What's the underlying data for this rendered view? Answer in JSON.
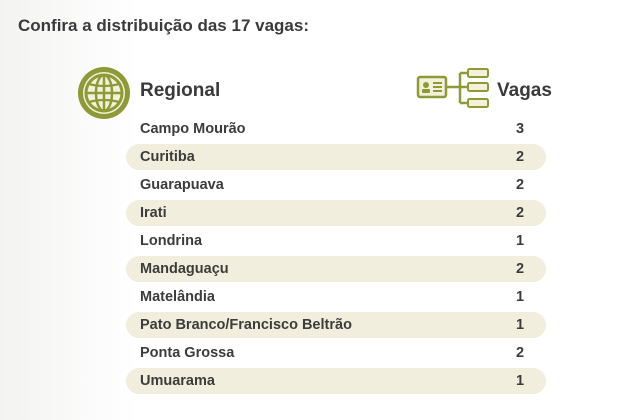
{
  "heading": "Confira a distribuição das 17 vagas:",
  "columns": {
    "regional": "Regional",
    "vagas": "Vagas"
  },
  "rows": [
    {
      "regional": "Campo Mourão",
      "vagas": "3"
    },
    {
      "regional": "Curitiba",
      "vagas": "2"
    },
    {
      "regional": "Guarapuava",
      "vagas": "2"
    },
    {
      "regional": "Irati",
      "vagas": "2"
    },
    {
      "regional": "Londrina",
      "vagas": "1"
    },
    {
      "regional": "Mandaguaçu",
      "vagas": "2"
    },
    {
      "regional": "Matelândia",
      "vagas": "1"
    },
    {
      "regional": "Pato Branco/Francisco Beltrão",
      "vagas": "1"
    },
    {
      "regional": "Ponta Grossa",
      "vagas": "2"
    },
    {
      "regional": "Umuarama",
      "vagas": "1"
    }
  ],
  "colors": {
    "accent": "#8d9a36",
    "row_shade": "#f1eedd",
    "text": "#3c3c3c"
  },
  "icons": {
    "regional": "globe-icon",
    "vagas": "id-card-list-icon"
  }
}
